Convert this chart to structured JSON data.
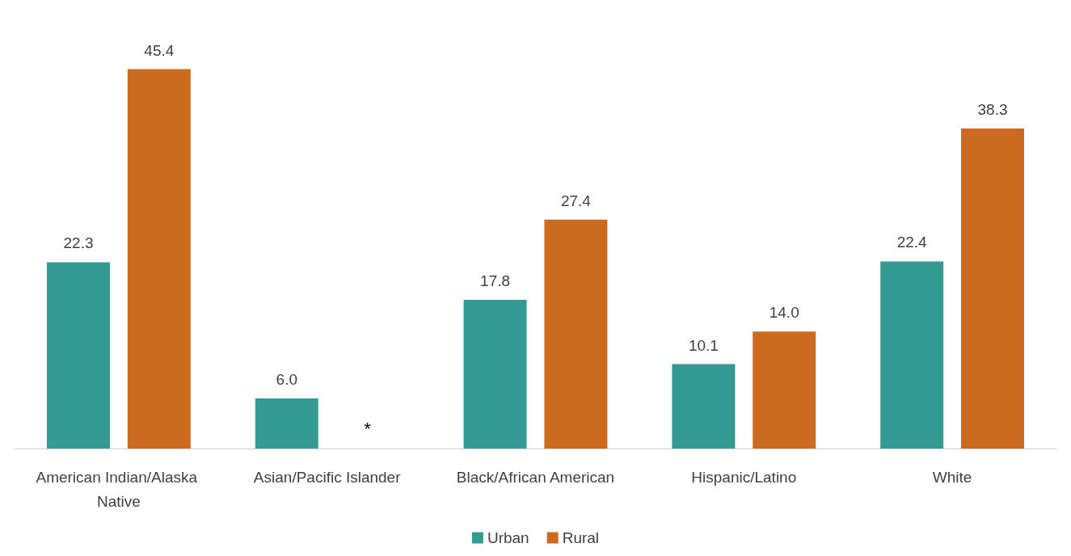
{
  "chart_data": {
    "type": "bar",
    "categories": [
      "American Indian/Alaska Native",
      "Asian/Pacific Islander",
      "Black/African American",
      "Hispanic/Latino",
      "White"
    ],
    "series": [
      {
        "name": "Urban",
        "color": "#369a94",
        "values": [
          22.3,
          6,
          17.8,
          10.1,
          22.4
        ],
        "value_labels": [
          "22.3",
          "6.0",
          "17.8",
          "10.1",
          "22.4"
        ]
      },
      {
        "name": "Rural",
        "color": "#cc6b20",
        "values": [
          45.4,
          null,
          27.4,
          14,
          38.3
        ],
        "value_labels": [
          "45.4",
          null,
          "27.4",
          "14.0",
          "38.3"
        ]
      }
    ],
    "legend": "bottom",
    "grid": false,
    "annotations": [
      "*"
    ]
  }
}
